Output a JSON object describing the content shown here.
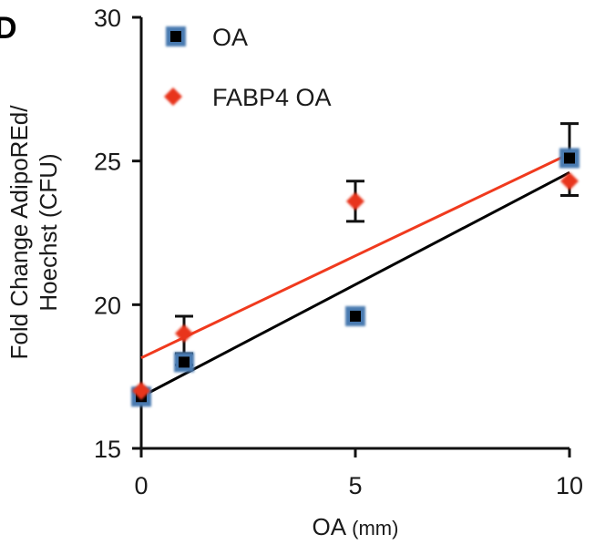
{
  "panel_label": "D",
  "chart_data": {
    "type": "scatter",
    "title": "",
    "xlabel": "OA",
    "xlabel_unit": "(mm)",
    "ylabel_line1": "Fold Change AdipoREd/",
    "ylabel_line2": "Hoechst (CFU)",
    "xlim": [
      0,
      10
    ],
    "ylim": [
      15,
      30
    ],
    "x_ticks": [
      0,
      5,
      10
    ],
    "y_ticks": [
      15,
      20,
      25,
      30
    ],
    "grid": false,
    "legend_position": "top-left",
    "series": [
      {
        "name": "OA",
        "marker": "square",
        "color": "#000000",
        "edge_color": "#4a7ab0",
        "trendline_color": "#000000",
        "x": [
          0,
          1,
          5,
          10
        ],
        "y": [
          16.8,
          18.0,
          19.6,
          25.1
        ],
        "err_low": [
          null,
          17.9,
          null,
          null
        ],
        "err_high": [
          null,
          18.3,
          null,
          26.3
        ],
        "trendline": {
          "intercept": 16.8,
          "slope": 0.78
        }
      },
      {
        "name": "FABP4 OA",
        "marker": "diamond",
        "color": "#e8351f",
        "edge_color": "#e8351f",
        "trendline_color": "#f03a1e",
        "x": [
          0,
          1,
          5,
          10
        ],
        "y": [
          17.0,
          19.0,
          23.6,
          24.3
        ],
        "err_low": [
          null,
          18.3,
          22.9,
          23.8
        ],
        "err_high": [
          null,
          19.6,
          24.3,
          null
        ],
        "trendline": {
          "intercept": 18.15,
          "slope": 0.71
        }
      }
    ]
  }
}
